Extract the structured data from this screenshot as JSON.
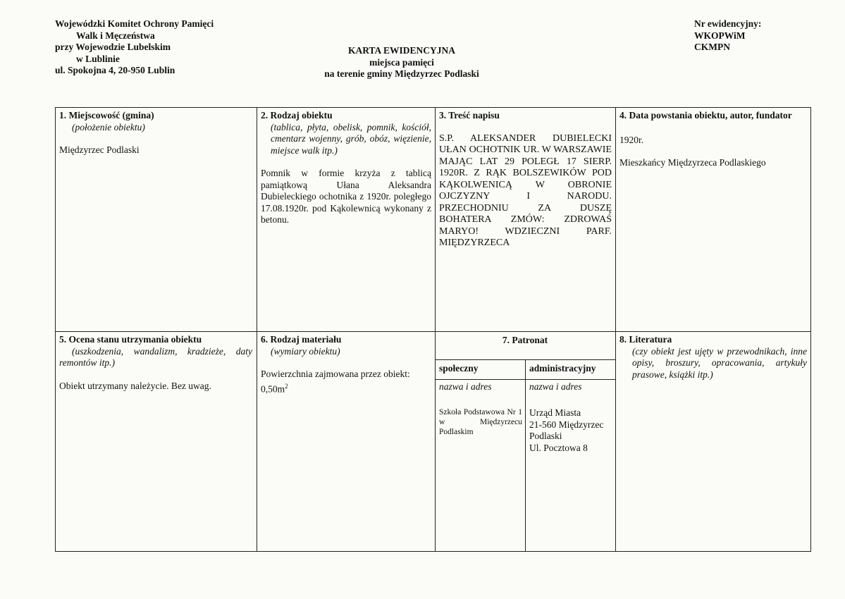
{
  "header": {
    "institution": [
      "Wojewódzki Komitet Ochrony Pamięci",
      "Walk i Męczeństwa",
      "przy Wojewodzie Lubelskim",
      "w Lublinie",
      "ul. Spokojna 4, 20-950 Lublin"
    ],
    "title": "KARTA EWIDENCYJNA",
    "subtitle1": "miejsca pamięci",
    "subtitle2": "na terenie gminy Międzyrzec Podlaski",
    "nr_label": "Nr ewidencyjny:",
    "nr_lines": [
      "WKOPWiM",
      "CKMPN"
    ]
  },
  "cells": {
    "c1": {
      "title": "1. Miejscowość (gmina)",
      "hint": "(położenie obiektu)",
      "value": "Międzyrzec Podlaski"
    },
    "c2": {
      "title": "2. Rodzaj obiektu",
      "hint": "(tablica, płyta, obelisk, pomnik, kościół, cmentarz wojenny, grób, obóz, więzienie, miejsce walk itp.)",
      "value": "Pomnik w formie krzyża z tablicą pamiątkową Ułana Aleksandra Dubieleckiego ochotnika z 1920r. poległego 17.08.1920r. pod Kąkolewnicą wykonany z betonu."
    },
    "c3": {
      "title": "3. Treść napisu",
      "value": "S.P. ALEKSANDER DUBIELECKI UŁAN OCHOTNIK UR. W WARSZAWIE MAJĄC LAT 29 POLEGŁ 17 SIERP. 1920R. Z RĄK BOLSZEWIKÓW POD KĄKOLWENICĄ W OBRONIE OJCZYZNY I NARODU. PRZECHODNIU ZA DUSZĘ BOHATERA ZMÓW: ZDROWAŚ MARYO! WDZIECZNI PARF. MIĘDZYRZECA"
    },
    "c4": {
      "title": "4. Data powstania obiektu, autor, fundator",
      "date": "1920r.",
      "value": "Mieszkańcy Międzyrzeca Podlaskiego"
    },
    "c5": {
      "title": "5. Ocena stanu utrzymania obiektu",
      "hint": "(uszkodzenia, wandalizm, kradzieże, daty remontów itp.)",
      "value": "Obiekt utrzymany należycie. Bez uwag."
    },
    "c6": {
      "title": "6. Rodzaj materiału",
      "hint": "(wymiary obiektu)",
      "value": "Powierzchnia zajmowana przez obiekt: 0,50m",
      "sup": "2"
    },
    "c7": {
      "title": "7. Patronat",
      "col1": "społeczny",
      "col2": "administracyjny",
      "sub1": "nazwa i adres",
      "sub2": "nazwa i adres",
      "val1": "Szkoła Podstawowa Nr 1 w Międzyrzecu Podlaskim",
      "val2": [
        "Urząd Miasta",
        "21-560 Międzyrzec",
        "Podlaski",
        "Ul. Pocztowa 8"
      ]
    },
    "c8": {
      "title": "8. Literatura",
      "hint": "(czy obiekt jest ujęty w przewodnikach, inne opisy, broszury, opracowania, artykuły prasowe, książki itp.)"
    }
  }
}
